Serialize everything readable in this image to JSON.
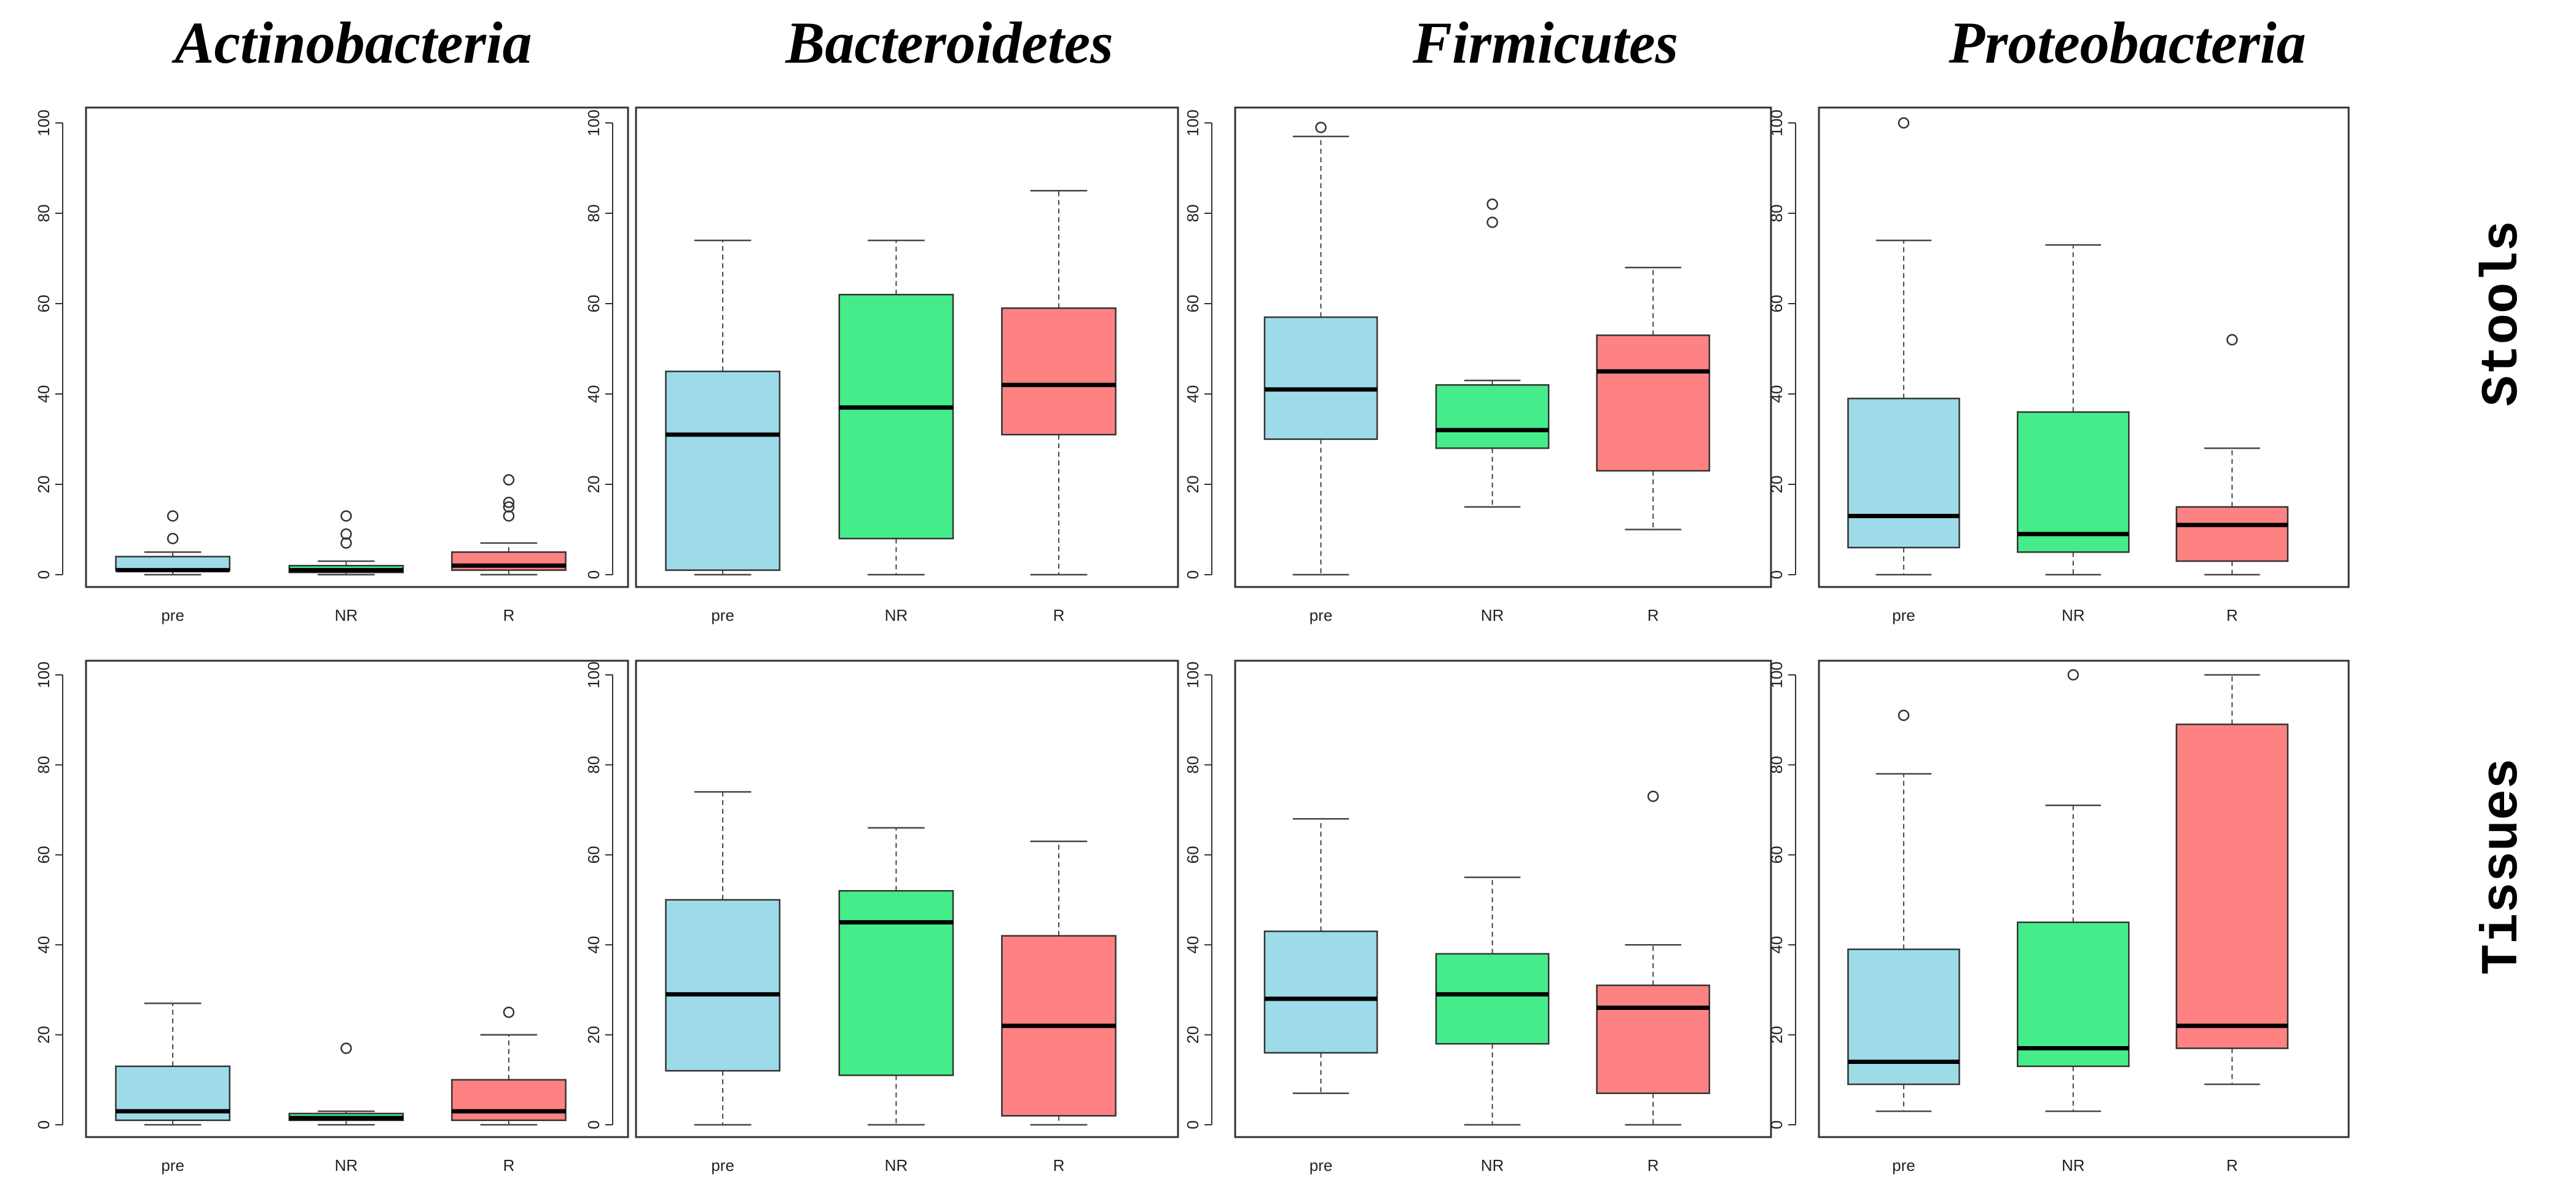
{
  "chart_data": {
    "type": "box",
    "row_labels": [
      "Stools",
      "Tissues"
    ],
    "column_titles": [
      "Actinobacteria",
      "Bacteroidetes",
      "Firmicutes",
      "Proteobacteria"
    ],
    "categories": [
      "pre",
      "NR",
      "R"
    ],
    "series_colors": {
      "pre": "#9ddbe8",
      "NR": "#45ed8a",
      "R": "#fe8282"
    },
    "ylim": [
      0,
      100
    ],
    "yticks": [
      0,
      20,
      40,
      60,
      80,
      100
    ],
    "panels": [
      {
        "row": "Stools",
        "title": "Actinobacteria",
        "boxes": [
          {
            "category": "pre",
            "min": 0,
            "q1": 1,
            "median": 1,
            "q3": 4,
            "max": 5,
            "outliers": [
              8,
              13
            ]
          },
          {
            "category": "NR",
            "min": 0,
            "q1": 0.5,
            "median": 1,
            "q3": 2,
            "max": 3,
            "outliers": [
              7,
              9,
              13
            ]
          },
          {
            "category": "R",
            "min": 0,
            "q1": 1,
            "median": 2,
            "q3": 5,
            "max": 7,
            "outliers": [
              13,
              15,
              16,
              21
            ]
          }
        ]
      },
      {
        "row": "Stools",
        "title": "Bacteroidetes",
        "boxes": [
          {
            "category": "pre",
            "min": 0,
            "q1": 1,
            "median": 31,
            "q3": 45,
            "max": 74,
            "outliers": []
          },
          {
            "category": "NR",
            "min": 0,
            "q1": 8,
            "median": 37,
            "q3": 62,
            "max": 74,
            "outliers": []
          },
          {
            "category": "R",
            "min": 0,
            "q1": 31,
            "median": 42,
            "q3": 59,
            "max": 85,
            "outliers": []
          }
        ]
      },
      {
        "row": "Stools",
        "title": "Firmicutes",
        "boxes": [
          {
            "category": "pre",
            "min": 0,
            "q1": 30,
            "median": 41,
            "q3": 57,
            "max": 97,
            "outliers": [
              99
            ]
          },
          {
            "category": "NR",
            "min": 15,
            "q1": 28,
            "median": 32,
            "q3": 42,
            "max": 43,
            "outliers": [
              78,
              82
            ]
          },
          {
            "category": "R",
            "min": 10,
            "q1": 23,
            "median": 45,
            "q3": 53,
            "max": 68,
            "outliers": []
          }
        ]
      },
      {
        "row": "Stools",
        "title": "Proteobacteria",
        "boxes": [
          {
            "category": "pre",
            "min": 0,
            "q1": 6,
            "median": 13,
            "q3": 39,
            "max": 74,
            "outliers": [
              100
            ]
          },
          {
            "category": "NR",
            "min": 0,
            "q1": 5,
            "median": 9,
            "q3": 36,
            "max": 73,
            "outliers": []
          },
          {
            "category": "R",
            "min": 0,
            "q1": 3,
            "median": 11,
            "q3": 15,
            "max": 28,
            "outliers": [
              52
            ]
          }
        ]
      },
      {
        "row": "Tissues",
        "title": "Actinobacteria",
        "boxes": [
          {
            "category": "pre",
            "min": 0,
            "q1": 1,
            "median": 3,
            "q3": 13,
            "max": 27,
            "outliers": []
          },
          {
            "category": "NR",
            "min": 0,
            "q1": 1,
            "median": 1.5,
            "q3": 2.5,
            "max": 3,
            "outliers": [
              17
            ]
          },
          {
            "category": "R",
            "min": 0,
            "q1": 1,
            "median": 3,
            "q3": 10,
            "max": 20,
            "outliers": [
              25
            ]
          }
        ]
      },
      {
        "row": "Tissues",
        "title": "Bacteroidetes",
        "boxes": [
          {
            "category": "pre",
            "min": 0,
            "q1": 12,
            "median": 29,
            "q3": 50,
            "max": 74,
            "outliers": []
          },
          {
            "category": "NR",
            "min": 0,
            "q1": 11,
            "median": 45,
            "q3": 52,
            "max": 66,
            "outliers": []
          },
          {
            "category": "R",
            "min": 0,
            "q1": 2,
            "median": 22,
            "q3": 42,
            "max": 63,
            "outliers": []
          }
        ]
      },
      {
        "row": "Tissues",
        "title": "Firmicutes",
        "boxes": [
          {
            "category": "pre",
            "min": 7,
            "q1": 16,
            "median": 28,
            "q3": 43,
            "max": 68,
            "outliers": []
          },
          {
            "category": "NR",
            "min": 0,
            "q1": 18,
            "median": 29,
            "q3": 38,
            "max": 55,
            "outliers": []
          },
          {
            "category": "R",
            "min": 0,
            "q1": 7,
            "median": 26,
            "q3": 31,
            "max": 40,
            "outliers": [
              73
            ]
          }
        ]
      },
      {
        "row": "Tissues",
        "title": "Proteobacteria",
        "boxes": [
          {
            "category": "pre",
            "min": 3,
            "q1": 9,
            "median": 14,
            "q3": 39,
            "max": 78,
            "outliers": [
              91
            ]
          },
          {
            "category": "NR",
            "min": 3,
            "q1": 13,
            "median": 17,
            "q3": 45,
            "max": 71,
            "outliers": [
              100
            ]
          },
          {
            "category": "R",
            "min": 9,
            "q1": 17,
            "median": 22,
            "q3": 89,
            "max": 100,
            "outliers": []
          }
        ]
      }
    ]
  }
}
